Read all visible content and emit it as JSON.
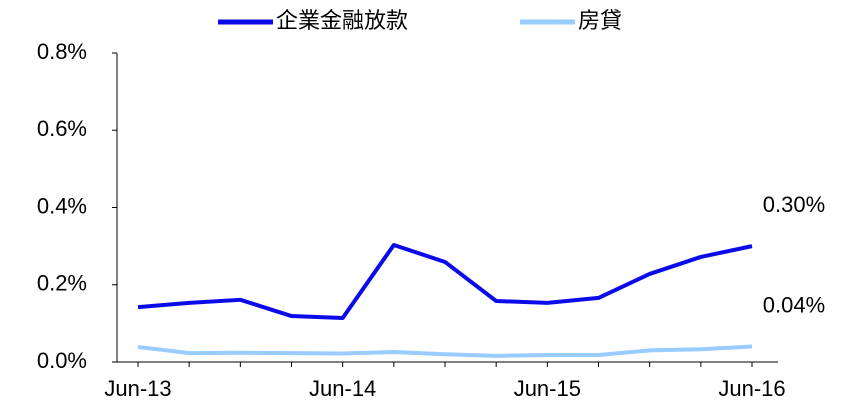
{
  "chart_data": {
    "type": "line",
    "categories": [
      "Jun-13",
      null,
      null,
      null,
      "Jun-14",
      null,
      null,
      null,
      "Jun-15",
      null,
      null,
      null,
      "Jun-16"
    ],
    "series": [
      {
        "name": "企業金融放款",
        "color": "#0b0bea",
        "values": [
          0.142,
          0.153,
          0.161,
          0.119,
          0.114,
          0.303,
          0.259,
          0.158,
          0.153,
          0.166,
          0.228,
          0.272,
          0.3
        ],
        "value_labels": [
          null,
          null,
          null,
          null,
          null,
          null,
          null,
          null,
          null,
          null,
          null,
          null,
          "0.30%"
        ]
      },
      {
        "name": "房貸",
        "color": "#99ccff",
        "values": [
          0.039,
          0.023,
          0.024,
          0.023,
          0.022,
          0.026,
          0.02,
          0.016,
          0.018,
          0.018,
          0.03,
          0.033,
          0.04
        ],
        "value_labels": [
          null,
          null,
          null,
          null,
          null,
          null,
          null,
          null,
          null,
          null,
          null,
          null,
          "0.04%"
        ]
      }
    ],
    "ylim": [
      0,
      0.8
    ],
    "yticks": [
      {
        "value": 0,
        "label": "0.0%"
      },
      {
        "value": 0.2,
        "label": "0.2%"
      },
      {
        "value": 0.4,
        "label": "0.4%"
      },
      {
        "value": 0.6,
        "label": "0.6%"
      },
      {
        "value": 0.8,
        "label": "0.8%"
      }
    ],
    "grid": false,
    "legend": "top"
  }
}
